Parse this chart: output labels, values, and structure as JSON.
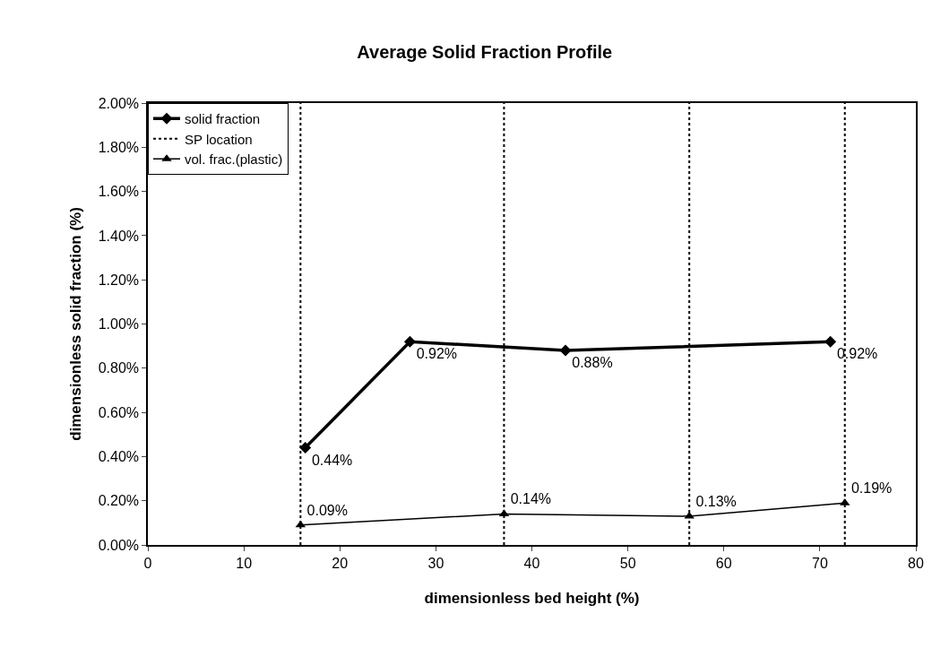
{
  "chart_data": {
    "type": "line",
    "title": "Average Solid Fraction Profile",
    "xlabel": "dimensionless bed height (%)",
    "ylabel": "dimensionless solid fraction (%)",
    "xlim": [
      0,
      80
    ],
    "xticks": [
      0,
      10,
      20,
      30,
      40,
      50,
      60,
      70,
      80
    ],
    "ylim": [
      0,
      2
    ],
    "yticks": [
      {
        "value": 0,
        "label": "0.00%"
      },
      {
        "value": 0.2,
        "label": "0.20%"
      },
      {
        "value": 0.4,
        "label": "0.40%"
      },
      {
        "value": 0.6,
        "label": "0.60%"
      },
      {
        "value": 0.8,
        "label": "0.80%"
      },
      {
        "value": 1,
        "label": "1.00%"
      },
      {
        "value": 1.2,
        "label": "1.20%"
      },
      {
        "value": 1.4,
        "label": "1.40%"
      },
      {
        "value": 1.6,
        "label": "1.60%"
      },
      {
        "value": 1.8,
        "label": "1.80%"
      },
      {
        "value": 2,
        "label": "2.00%"
      }
    ],
    "grid": false,
    "legend": "top left",
    "series": [
      {
        "name": "solid fraction",
        "color": "#000000",
        "marker": "diamond",
        "line_style": "solid",
        "x": [
          16.4,
          27.3,
          43.5,
          71.1
        ],
        "values": [
          0.44,
          0.92,
          0.88,
          0.92
        ],
        "value_labels": [
          "0.44%",
          "0.92%",
          "0.88%",
          "0.92%"
        ]
      },
      {
        "name": "vol. frac.(plastic)",
        "color": "#000000",
        "marker": "triangle",
        "line_style": "solid",
        "x": [
          15.9,
          37.1,
          56.4,
          72.6
        ],
        "values": [
          0.09,
          0.14,
          0.13,
          0.19
        ],
        "value_labels": [
          "0.09%",
          "0.14%",
          "0.13%",
          "0.19%"
        ]
      },
      {
        "name": "SP location",
        "color": "#000000",
        "marker": "none",
        "line_style": "dotted",
        "x": [
          15.9,
          15.9,
          null,
          37.1,
          37.1,
          null,
          56.4,
          56.4,
          null,
          72.6,
          72.6
        ],
        "values": [
          0,
          2,
          null,
          0,
          2,
          null,
          0,
          2,
          null,
          0,
          2
        ]
      }
    ]
  }
}
